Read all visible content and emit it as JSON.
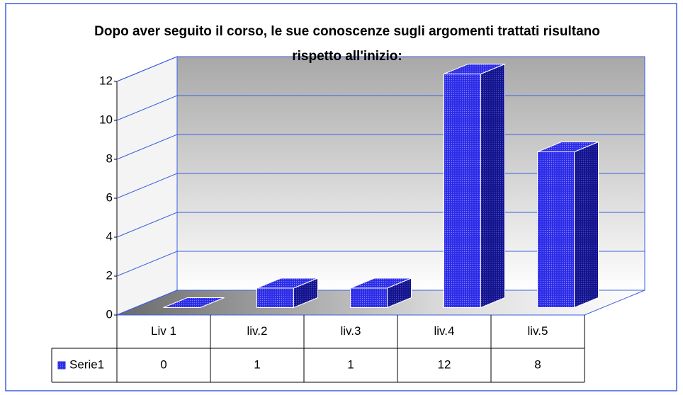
{
  "chart_data": {
    "type": "bar3d",
    "title": "Dopo aver seguito il corso, le sue conoscenze sugli argomenti trattati risultano rispetto all'inizio:",
    "categories": [
      "Liv 1",
      "liv.2",
      "liv.3",
      "liv.4",
      "liv.5"
    ],
    "series": [
      {
        "name": "Serie1",
        "color": "#2323d8",
        "values": [
          0,
          1,
          1,
          12,
          8
        ]
      }
    ],
    "ylim": [
      0,
      12
    ],
    "yticks": [
      0,
      2,
      4,
      6,
      8,
      10,
      12
    ],
    "grid": true
  }
}
